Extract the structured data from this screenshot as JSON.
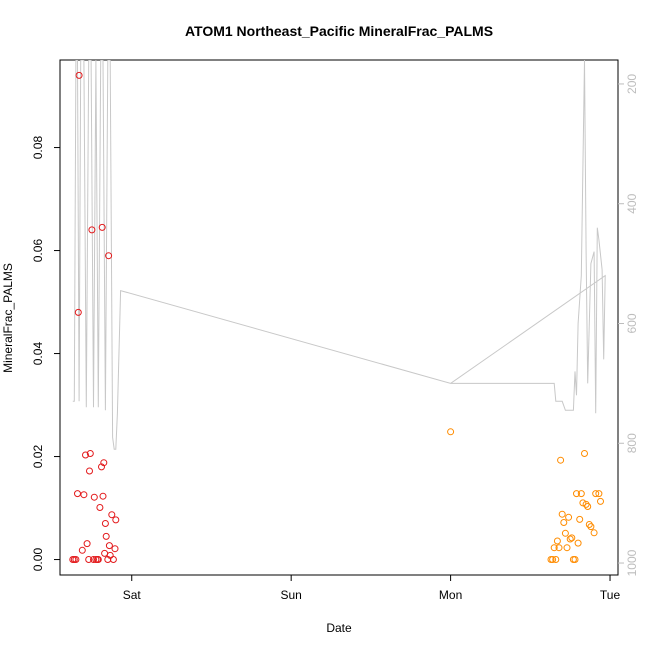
{
  "chart_data": {
    "type": "scatter",
    "title": "ATOM1 Northeast_Pacific MineralFrac_PALMS",
    "xlabel": "Date",
    "ylabel": "MineralFrac_PALMS",
    "x_units": "days",
    "x_range": [
      -0.45,
      3.05
    ],
    "xticks": [
      {
        "value": 0,
        "label": "Sat"
      },
      {
        "value": 1,
        "label": "Sun"
      },
      {
        "value": 2,
        "label": "Mon"
      },
      {
        "value": 3,
        "label": "Tue"
      }
    ],
    "ylim": [
      -0.003,
      0.097
    ],
    "yticks": [
      {
        "value": 0.0,
        "label": "0.00"
      },
      {
        "value": 0.02,
        "label": "0.02"
      },
      {
        "value": 0.04,
        "label": "0.04"
      },
      {
        "value": 0.06,
        "label": "0.06"
      },
      {
        "value": 0.08,
        "label": "0.08"
      }
    ],
    "y2lim": [
      1020,
      160
    ],
    "y2ticks": [
      {
        "value": 200,
        "label": "200"
      },
      {
        "value": 400,
        "label": "400"
      },
      {
        "value": 600,
        "label": "600"
      },
      {
        "value": 800,
        "label": "800"
      },
      {
        "value": 1000,
        "label": "1000"
      }
    ],
    "grid": false,
    "colors": {
      "series1": "#e31a1c",
      "series2": "#ff8c00",
      "line": "#c8c8c8",
      "axis": "#000000",
      "axis2": "#bdbdbd"
    },
    "series": [
      {
        "color": "#e31a1c",
        "points": [
          [
            -0.37,
            0.0
          ],
          [
            -0.36,
            0.0
          ],
          [
            -0.35,
            0.0
          ],
          [
            -0.34,
            0.0128
          ],
          [
            -0.335,
            0.048
          ],
          [
            -0.33,
            0.094
          ],
          [
            -0.31,
            0.0018
          ],
          [
            -0.3,
            0.0126
          ],
          [
            -0.29,
            0.0203
          ],
          [
            -0.28,
            0.0031
          ],
          [
            -0.27,
            0.0
          ],
          [
            -0.265,
            0.0172
          ],
          [
            -0.26,
            0.0206
          ],
          [
            -0.25,
            0.064
          ],
          [
            -0.24,
            0.0
          ],
          [
            -0.235,
            0.0121
          ],
          [
            -0.225,
            0.0
          ],
          [
            -0.215,
            0.0
          ],
          [
            -0.21,
            0.0
          ],
          [
            -0.2,
            0.0101
          ],
          [
            -0.19,
            0.018
          ],
          [
            -0.185,
            0.0645
          ],
          [
            -0.18,
            0.0123
          ],
          [
            -0.175,
            0.0188
          ],
          [
            -0.17,
            0.0012
          ],
          [
            -0.165,
            0.007
          ],
          [
            -0.16,
            0.0045
          ],
          [
            -0.15,
            0.0
          ],
          [
            -0.145,
            0.059
          ],
          [
            -0.14,
            0.0027
          ],
          [
            -0.135,
            0.0008
          ],
          [
            -0.125,
            0.0087
          ],
          [
            -0.115,
            0.0
          ],
          [
            -0.105,
            0.0021
          ],
          [
            -0.1,
            0.0077
          ]
        ]
      },
      {
        "color": "#ff8c00",
        "points": [
          [
            2.0,
            0.0248
          ],
          [
            2.63,
            0.0
          ],
          [
            2.64,
            0.0
          ],
          [
            2.65,
            0.0023
          ],
          [
            2.66,
            0.0
          ],
          [
            2.67,
            0.0036
          ],
          [
            2.68,
            0.0023
          ],
          [
            2.69,
            0.0193
          ],
          [
            2.7,
            0.0088
          ],
          [
            2.71,
            0.0072
          ],
          [
            2.72,
            0.0051
          ],
          [
            2.73,
            0.0023
          ],
          [
            2.74,
            0.0082
          ],
          [
            2.75,
            0.004
          ],
          [
            2.76,
            0.0042
          ],
          [
            2.77,
            0.0
          ],
          [
            2.78,
            0.0
          ],
          [
            2.79,
            0.0128
          ],
          [
            2.8,
            0.0032
          ],
          [
            2.81,
            0.0078
          ],
          [
            2.82,
            0.0128
          ],
          [
            2.83,
            0.011
          ],
          [
            2.84,
            0.0206
          ],
          [
            2.85,
            0.0107
          ],
          [
            2.86,
            0.0103
          ],
          [
            2.87,
            0.0068
          ],
          [
            2.88,
            0.0064
          ],
          [
            2.9,
            0.0052
          ],
          [
            2.91,
            0.0128
          ],
          [
            2.93,
            0.0128
          ],
          [
            2.94,
            0.0113
          ]
        ]
      }
    ],
    "line_series": {
      "axis": "right",
      "color": "#c8c8c8",
      "points": [
        [
          -0.37,
          730
        ],
        [
          -0.36,
          730
        ],
        [
          -0.35,
          160
        ],
        [
          -0.34,
          160
        ],
        [
          -0.33,
          730
        ],
        [
          -0.32,
          160
        ],
        [
          -0.3,
          160
        ],
        [
          -0.285,
          740
        ],
        [
          -0.27,
          160
        ],
        [
          -0.255,
          160
        ],
        [
          -0.24,
          740
        ],
        [
          -0.225,
          160
        ],
        [
          -0.21,
          740
        ],
        [
          -0.195,
          160
        ],
        [
          -0.18,
          160
        ],
        [
          -0.165,
          745
        ],
        [
          -0.15,
          160
        ],
        [
          -0.135,
          160
        ],
        [
          -0.12,
          790
        ],
        [
          -0.11,
          810
        ],
        [
          -0.1,
          810
        ],
        [
          -0.09,
          750
        ],
        [
          -0.07,
          545
        ],
        [
          2.0,
          700
        ],
        [
          2.65,
          700
        ],
        [
          2.66,
          730
        ],
        [
          2.7,
          730
        ],
        [
          2.72,
          745
        ],
        [
          2.75,
          745
        ],
        [
          2.77,
          745
        ],
        [
          2.78,
          680
        ],
        [
          2.79,
          720
        ],
        [
          2.8,
          600
        ],
        [
          2.82,
          520
        ],
        [
          2.84,
          160
        ],
        [
          2.85,
          480
        ],
        [
          2.86,
          700
        ],
        [
          2.88,
          500
        ],
        [
          2.9,
          480
        ],
        [
          2.91,
          750
        ],
        [
          2.92,
          440
        ],
        [
          2.93,
          460
        ],
        [
          2.95,
          510
        ],
        [
          2.96,
          660
        ],
        [
          2.97,
          520
        ],
        [
          2.0,
          700
        ]
      ]
    }
  }
}
